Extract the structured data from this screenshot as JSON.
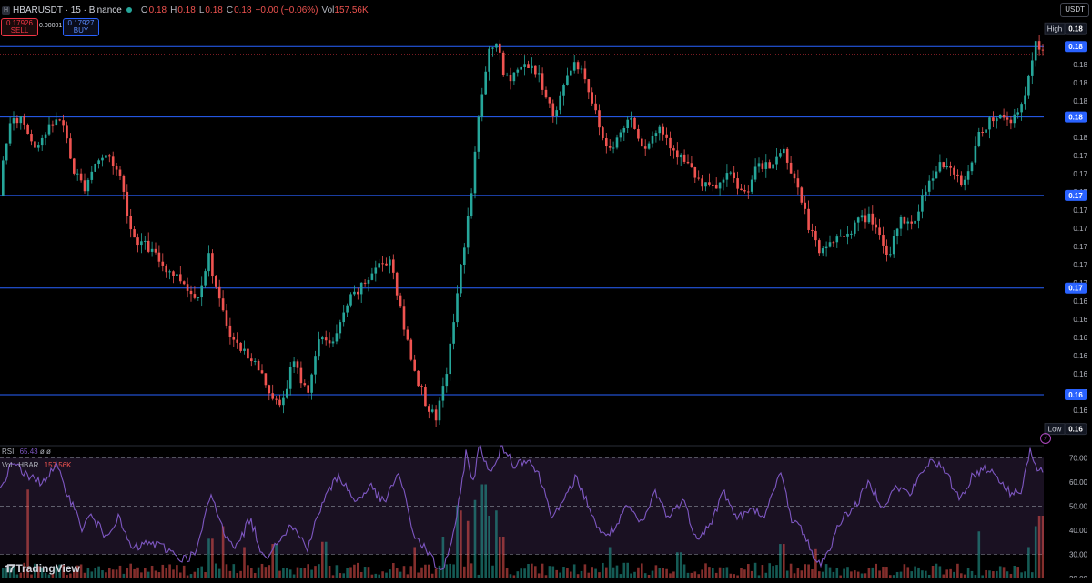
{
  "header": {
    "symbol": "HBARUSDT · 15 · Binance",
    "open_label": "O",
    "open": "0.18",
    "high_label": "H",
    "high": "0.18",
    "low_label": "L",
    "low": "0.18",
    "close_label": "C",
    "close": "0.18",
    "change": "−0.00 (−0.06%)",
    "vol_label": "Vol",
    "vol": "157.56K"
  },
  "trade": {
    "sell_price": "0.17926",
    "sell_label": "SELL",
    "spread": "0.00001",
    "buy_price": "0.17927",
    "buy_label": "BUY"
  },
  "currency": "USDT",
  "rsi_pane": {
    "label": "RSI",
    "value": "65.43",
    "extra": "ø ø"
  },
  "volume_pane": {
    "label": "Vol · HBAR",
    "value": "157.56K"
  },
  "logo": {
    "text": "TradingView"
  },
  "colors": {
    "up": "#26a69a",
    "down": "#ef5350",
    "hline": "#2962ff",
    "rsi": "#7e57c2",
    "rsi_band": "#1e1428",
    "last_price": "#f23645"
  },
  "chart_data": [
    {
      "type": "candlestick",
      "series_name": "HBARUSDT",
      "y_ticks": [
        "0.18",
        "0.18",
        "0.18",
        "0.18",
        "0.18",
        "0.18",
        "0.18",
        "0.17",
        "0.17",
        "0.17",
        "0.17",
        "0.17",
        "0.17",
        "0.17",
        "0.17",
        "0.16",
        "0.16",
        "0.16",
        "0.16",
        "0.16",
        "0.16",
        "0.16"
      ],
      "ylim": [
        0.1605,
        0.1812
      ],
      "horizontal_levels": [
        {
          "label": "0.18",
          "value": 0.1797
        },
        {
          "label": "0.18",
          "value": 0.1762
        },
        {
          "label": "0.17",
          "value": 0.1723
        },
        {
          "label": "0.17",
          "value": 0.1677
        },
        {
          "label": "0.16",
          "value": 0.1624
        }
      ],
      "last_price": 0.1793,
      "high_label": "High",
      "high_value_label": "0.18",
      "high_value": 0.1806,
      "low_label": "Low",
      "low_value_label": "0.16",
      "low_value": 0.1607,
      "anchors": [
        [
          0,
          0.1723
        ],
        [
          12,
          0.1757
        ],
        [
          26,
          0.1762
        ],
        [
          40,
          0.1748
        ],
        [
          55,
          0.1755
        ],
        [
          70,
          0.1763
        ],
        [
          82,
          0.1737
        ],
        [
          95,
          0.1727
        ],
        [
          108,
          0.174
        ],
        [
          122,
          0.1743
        ],
        [
          135,
          0.1732
        ],
        [
          148,
          0.1703
        ],
        [
          165,
          0.1697
        ],
        [
          185,
          0.1687
        ],
        [
          205,
          0.168
        ],
        [
          218,
          0.1671
        ],
        [
          232,
          0.1693
        ],
        [
          245,
          0.1667
        ],
        [
          260,
          0.165
        ],
        [
          280,
          0.1642
        ],
        [
          298,
          0.1627
        ],
        [
          310,
          0.1617
        ],
        [
          325,
          0.164
        ],
        [
          340,
          0.1625
        ],
        [
          355,
          0.1653
        ],
        [
          370,
          0.165
        ],
        [
          385,
          0.167
        ],
        [
          400,
          0.1677
        ],
        [
          415,
          0.1687
        ],
        [
          432,
          0.1692
        ],
        [
          445,
          0.166
        ],
        [
          458,
          0.1637
        ],
        [
          468,
          0.1623
        ],
        [
          482,
          0.161
        ],
        [
          495,
          0.164
        ],
        [
          510,
          0.169
        ],
        [
          520,
          0.1722
        ],
        [
          530,
          0.1768
        ],
        [
          540,
          0.1793
        ],
        [
          548,
          0.18
        ],
        [
          557,
          0.178
        ],
        [
          570,
          0.1785
        ],
        [
          585,
          0.1789
        ],
        [
          600,
          0.1777
        ],
        [
          612,
          0.176
        ],
        [
          625,
          0.1783
        ],
        [
          635,
          0.179
        ],
        [
          645,
          0.1783
        ],
        [
          655,
          0.1767
        ],
        [
          668,
          0.1747
        ],
        [
          680,
          0.175
        ],
        [
          695,
          0.1763
        ],
        [
          710,
          0.1747
        ],
        [
          728,
          0.1757
        ],
        [
          745,
          0.1745
        ],
        [
          760,
          0.1737
        ],
        [
          775,
          0.1727
        ],
        [
          790,
          0.1727
        ],
        [
          805,
          0.1733
        ],
        [
          820,
          0.1723
        ],
        [
          835,
          0.1737
        ],
        [
          850,
          0.1737
        ],
        [
          862,
          0.1747
        ],
        [
          875,
          0.1733
        ],
        [
          890,
          0.171
        ],
        [
          903,
          0.1693
        ],
        [
          915,
          0.17
        ],
        [
          930,
          0.1703
        ],
        [
          945,
          0.171
        ],
        [
          960,
          0.1713
        ],
        [
          978,
          0.169
        ],
        [
          992,
          0.1713
        ],
        [
          1005,
          0.1707
        ],
        [
          1020,
          0.1727
        ],
        [
          1035,
          0.174
        ],
        [
          1050,
          0.1733
        ],
        [
          1063,
          0.173
        ],
        [
          1076,
          0.175
        ],
        [
          1088,
          0.176
        ],
        [
          1100,
          0.1763
        ],
        [
          1112,
          0.176
        ],
        [
          1124,
          0.1767
        ],
        [
          1133,
          0.178
        ],
        [
          1140,
          0.1798
        ],
        [
          1147,
          0.1793
        ]
      ]
    },
    {
      "type": "line",
      "series_name": "RSI",
      "y_ticks": [
        "70.00",
        "60.00",
        "50.00",
        "40.00",
        "30.00",
        "20.00"
      ],
      "ylim": [
        20,
        75
      ],
      "bands": [
        30,
        50,
        70
      ],
      "last_value": 65.43,
      "anchors": [
        [
          0,
          57
        ],
        [
          15,
          69
        ],
        [
          30,
          62
        ],
        [
          45,
          60
        ],
        [
          62,
          66
        ],
        [
          75,
          55
        ],
        [
          90,
          41
        ],
        [
          100,
          46
        ],
        [
          115,
          38
        ],
        [
          130,
          45
        ],
        [
          145,
          32
        ],
        [
          165,
          35
        ],
        [
          185,
          32
        ],
        [
          200,
          28
        ],
        [
          215,
          30
        ],
        [
          232,
          55
        ],
        [
          245,
          40
        ],
        [
          260,
          33
        ],
        [
          275,
          45
        ],
        [
          290,
          28
        ],
        [
          305,
          36
        ],
        [
          320,
          42
        ],
        [
          338,
          33
        ],
        [
          355,
          52
        ],
        [
          372,
          63
        ],
        [
          390,
          52
        ],
        [
          408,
          58
        ],
        [
          422,
          51
        ],
        [
          438,
          64
        ],
        [
          455,
          38
        ],
        [
          470,
          31
        ],
        [
          485,
          22
        ],
        [
          500,
          40
        ],
        [
          512,
          72
        ],
        [
          520,
          60
        ],
        [
          527,
          75
        ],
        [
          540,
          63
        ],
        [
          552,
          75
        ],
        [
          565,
          67
        ],
        [
          580,
          70
        ],
        [
          593,
          62
        ],
        [
          606,
          47
        ],
        [
          618,
          50
        ],
        [
          632,
          62
        ],
        [
          645,
          52
        ],
        [
          660,
          38
        ],
        [
          675,
          40
        ],
        [
          690,
          50
        ],
        [
          705,
          42
        ],
        [
          720,
          56
        ],
        [
          735,
          45
        ],
        [
          750,
          53
        ],
        [
          765,
          37
        ],
        [
          780,
          42
        ],
        [
          795,
          56
        ],
        [
          810,
          45
        ],
        [
          825,
          48
        ],
        [
          842,
          47
        ],
        [
          858,
          64
        ],
        [
          870,
          45
        ],
        [
          885,
          38
        ],
        [
          898,
          25
        ],
        [
          910,
          31
        ],
        [
          925,
          45
        ],
        [
          940,
          50
        ],
        [
          955,
          60
        ],
        [
          970,
          50
        ],
        [
          985,
          58
        ],
        [
          1000,
          55
        ],
        [
          1012,
          63
        ],
        [
          1025,
          70
        ],
        [
          1040,
          63
        ],
        [
          1055,
          53
        ],
        [
          1068,
          62
        ],
        [
          1082,
          66
        ],
        [
          1095,
          63
        ],
        [
          1110,
          55
        ],
        [
          1122,
          57
        ],
        [
          1132,
          73
        ],
        [
          1140,
          64
        ],
        [
          1147,
          65.43
        ]
      ]
    },
    {
      "type": "bar",
      "series_name": "Vol · HBAR",
      "bar_height_scale": [
        0,
        1
      ],
      "spikes": [
        [
          30,
          0.85
        ],
        [
          230,
          0.38
        ],
        [
          245,
          0.5
        ],
        [
          268,
          0.3
        ],
        [
          300,
          0.33
        ],
        [
          355,
          0.35
        ],
        [
          455,
          0.3
        ],
        [
          485,
          0.4
        ],
        [
          500,
          0.7
        ],
        [
          505,
          0.65
        ],
        [
          512,
          0.55
        ],
        [
          520,
          0.75
        ],
        [
          530,
          0.9
        ],
        [
          537,
          0.6
        ],
        [
          545,
          0.65
        ],
        [
          550,
          0.4
        ],
        [
          670,
          0.3
        ],
        [
          745,
          0.25
        ],
        [
          858,
          0.33
        ],
        [
          895,
          0.28
        ],
        [
          1075,
          0.45
        ],
        [
          1128,
          0.3
        ],
        [
          1138,
          0.5
        ],
        [
          1143,
          0.6
        ]
      ]
    }
  ]
}
